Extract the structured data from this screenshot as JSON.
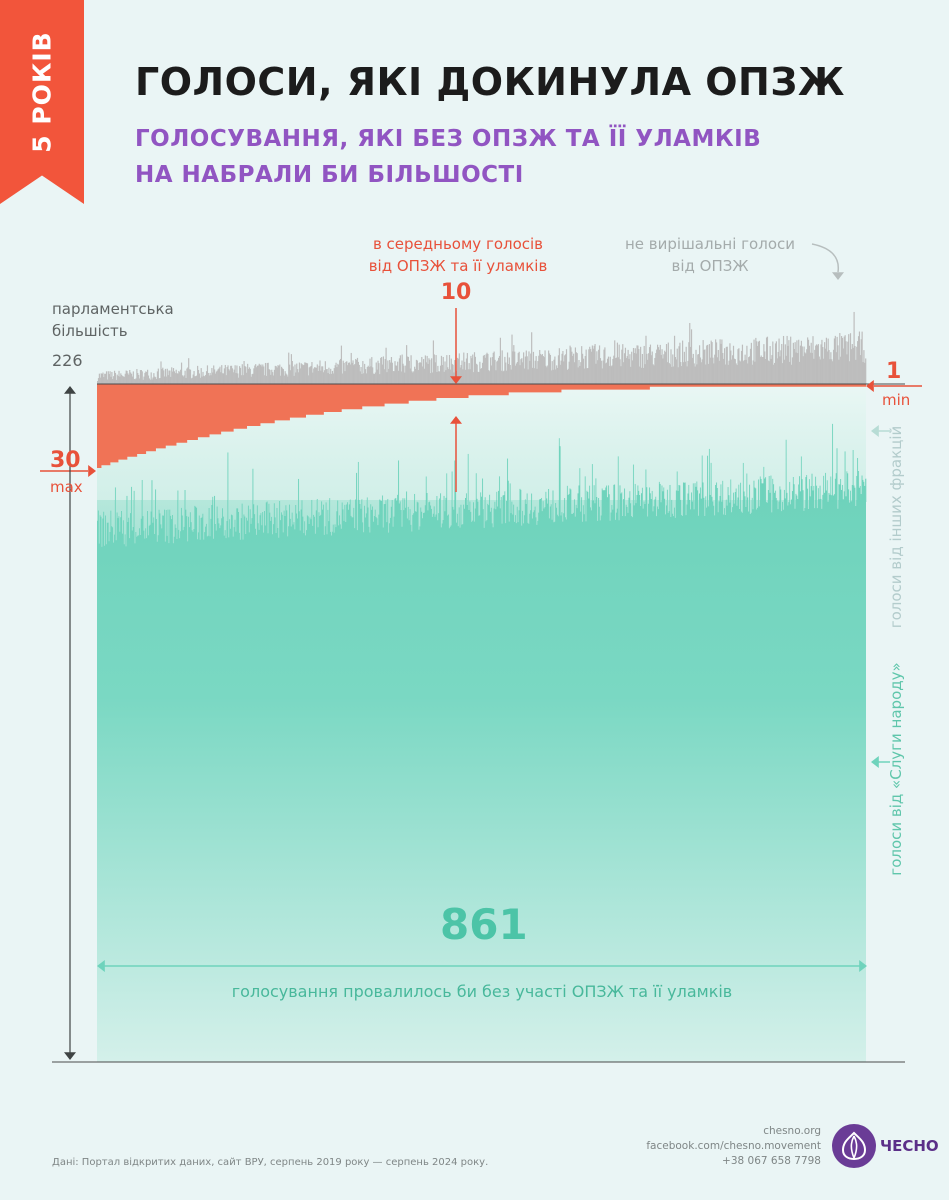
{
  "ribbon": "5 РОКІВ",
  "title": "ГОЛОСИ, ЯКІ ДОКИНУЛА ОПЗЖ",
  "subtitle": [
    "ГОЛОСУВАННЯ, ЯКІ БЕЗ ОПЗЖ ТА ЇЇ УЛАМКІВ",
    "НА НАБРАЛИ БИ БІЛЬШОСТІ"
  ],
  "annotations": {
    "majority": [
      "парламентська",
      "більшість"
    ],
    "majority_value": "226",
    "avg": [
      "в середньому голосів",
      "від ОПЗЖ та її уламків"
    ],
    "avg_value": "10",
    "non_decisive": [
      "не вирішальні голоси",
      "від ОПЗЖ"
    ],
    "max_value": "30",
    "max_label": "max",
    "min_value": "1",
    "min_label": "min",
    "other_factions": "голоси від інших фракцій",
    "servant": "голоси від «Слуги народу»",
    "count": "861",
    "count_caption": "голосування провалилось би без участі ОПЗЖ та її уламків"
  },
  "colors": {
    "background": "#eaf5f5",
    "opzzh": "#f07356",
    "accent_red": "#e8513a",
    "other_factions": "#aaaaaa",
    "servant_top": "#6fd3bc",
    "servant_bottom": "#d8f1ec",
    "title": "#1c1c1c",
    "subtitle": "#9155c2"
  },
  "footer": {
    "source": "Дані: Портал відкритих даних, сайт ВРУ, серпень 2019 року — серпень 2024 року.",
    "site": "chesno.org",
    "facebook": "facebook.com/chesno.movement",
    "phone": "+38 067 658 7798",
    "brand": "ЧЕСНО",
    "logo_icon": "garlic-icon"
  },
  "chart_data": {
    "type": "bar",
    "title": "ГОЛОСИ, ЯКІ ДОКИНУЛА ОПЗЖ",
    "description_note": "",
    "vote_count": 861,
    "majority_threshold": 226,
    "opzzh_votes": {
      "max": 30,
      "min": 1,
      "average": 10
    },
    "sort": "descending by OPZZh votes",
    "series": [
      {
        "name": "не вирішальні голоси від ОПЗЖ"
      },
      {
        "name": "в середньому голосів від ОПЗЖ та її уламків"
      },
      {
        "name": "голоси від інших фракцій"
      },
      {
        "name": "голоси від «Слуги народу»"
      }
    ]
  }
}
